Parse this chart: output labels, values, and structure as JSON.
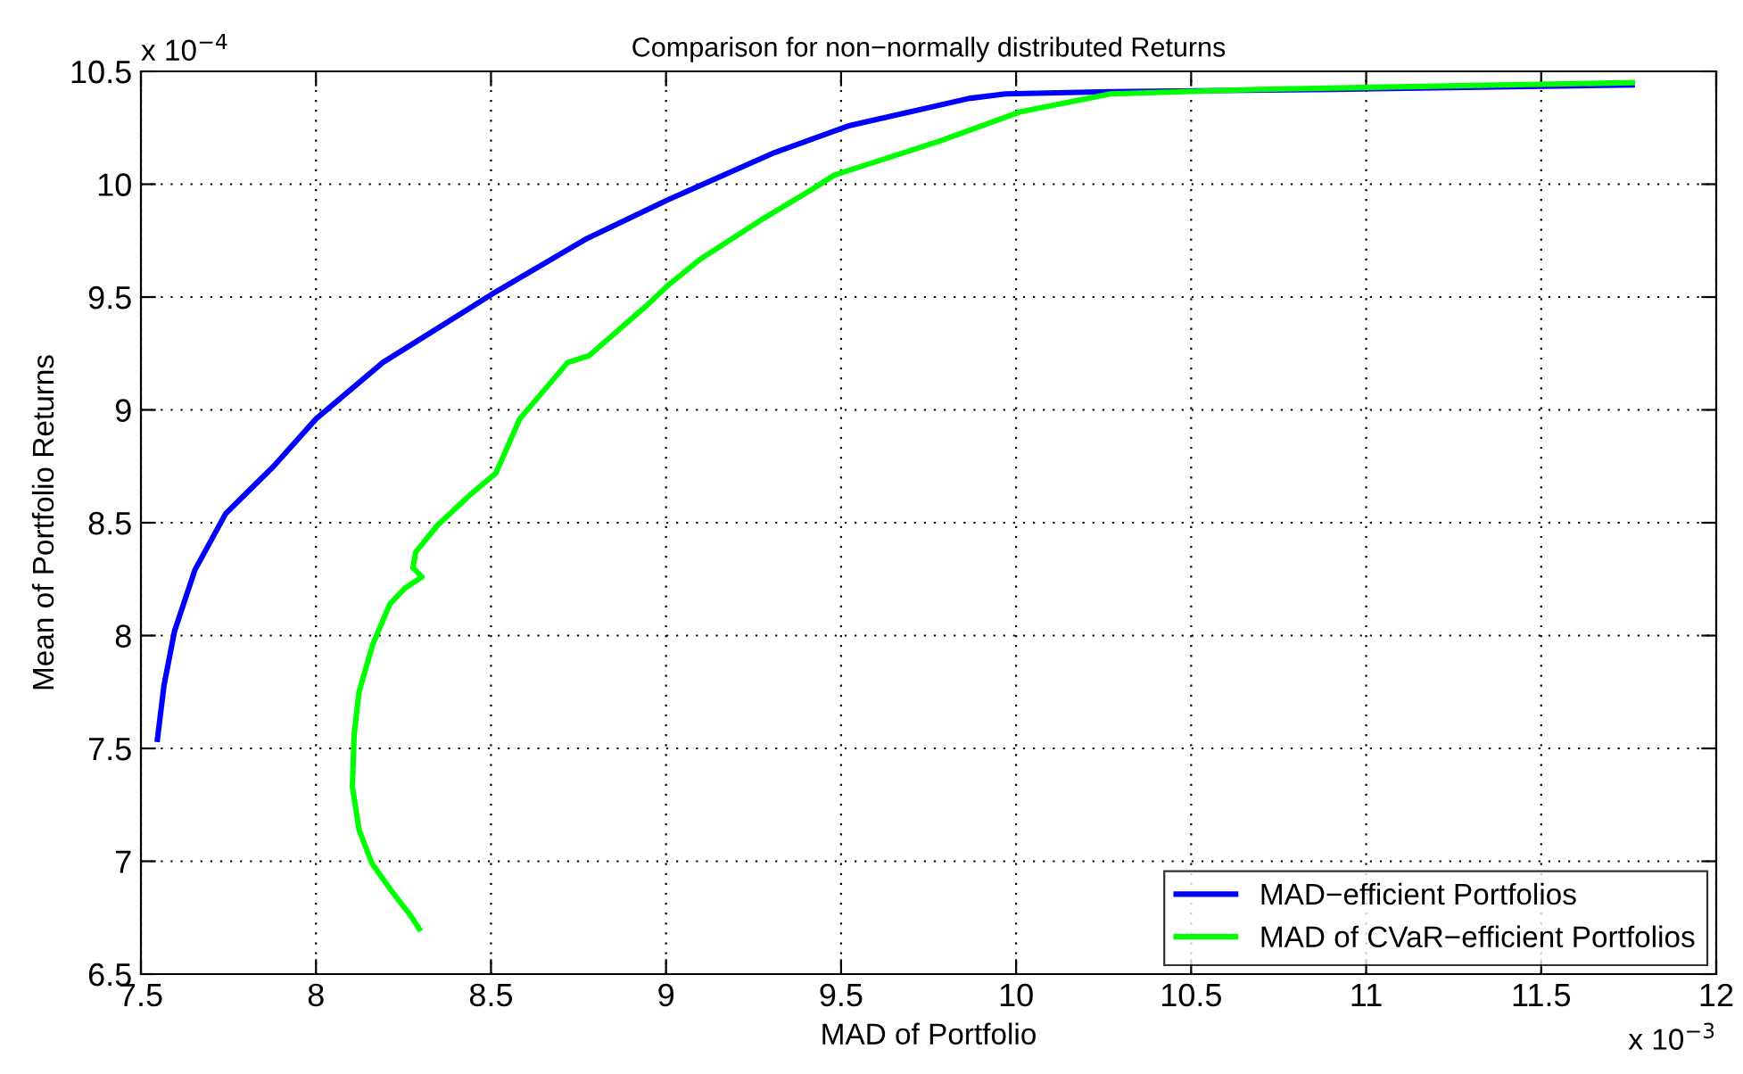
{
  "chart_data": {
    "type": "line",
    "title": "Comparison for non−normally distributed Returns",
    "xlabel": "MAD of Portfolio",
    "ylabel": "Mean of Portfolio Returns",
    "annotations": [
      "x 10$^{−4}$",
      "x 10$^{−3}$"
    ],
    "xlim": [
      7.5,
      12
    ],
    "xticks": [
      7.5,
      8,
      8.5,
      9,
      9.5,
      10,
      10.5,
      11,
      11.5,
      12
    ],
    "ylim": [
      6.5,
      10.5
    ],
    "yticks": [
      6.5,
      7,
      7.5,
      8,
      8.5,
      9,
      9.5,
      10,
      10.5
    ],
    "grid": true,
    "legend": "bottom right",
    "line_style": "solid",
    "marker": "none",
    "series": [
      {
        "name": "MAD−efficient Portfolios",
        "color": "#0000ff",
        "x": [
          7.547,
          7.566,
          7.596,
          7.654,
          7.742,
          7.879,
          8.0,
          8.191,
          8.5,
          8.775,
          9.004,
          9.31,
          9.525,
          9.865,
          9.97,
          10.27,
          10.91,
          11.76
        ],
        "values": [
          7.54,
          7.78,
          8.02,
          8.29,
          8.54,
          8.75,
          8.96,
          9.21,
          9.51,
          9.76,
          9.93,
          10.14,
          10.26,
          10.38,
          10.4,
          10.41,
          10.42,
          10.44
        ]
      },
      {
        "name": "MAD of CVaR−efficient Portfolios",
        "color": "#00ff00",
        "x": [
          8.295,
          8.27,
          8.22,
          8.16,
          8.123,
          8.104,
          8.109,
          8.123,
          8.162,
          8.211,
          8.254,
          8.303,
          8.277,
          8.285,
          8.348,
          8.445,
          8.514,
          8.582,
          8.719,
          8.78,
          8.95,
          9.004,
          9.1,
          9.27,
          9.42,
          9.48,
          9.78,
          10.01,
          10.27,
          10.69,
          11.76
        ],
        "values": [
          6.7,
          6.76,
          6.86,
          6.99,
          7.14,
          7.33,
          7.56,
          7.75,
          7.96,
          8.14,
          8.21,
          8.26,
          8.3,
          8.37,
          8.49,
          8.63,
          8.72,
          8.96,
          9.21,
          9.24,
          9.47,
          9.55,
          9.67,
          9.84,
          9.98,
          10.04,
          10.19,
          10.32,
          10.4,
          10.42,
          10.45
        ]
      }
    ]
  }
}
